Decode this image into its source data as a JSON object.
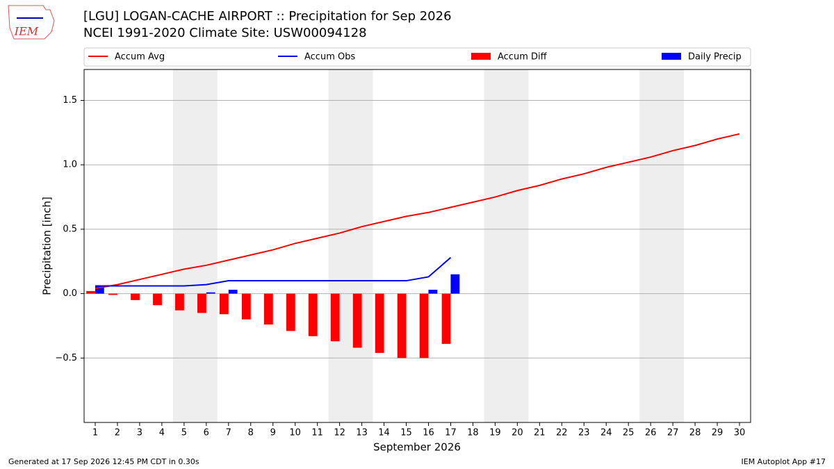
{
  "chart_data": {
    "type": "bar_line",
    "title": "[LGU] LOGAN-CACHE AIRPORT :: Precipitation for Sep 2026",
    "subtitle": "NCEI 1991-2020 Climate Site: USW00094128",
    "ylabel": "Precipitation [inch]",
    "xlabel": "September 2026",
    "footer_left": "Generated at 17 Sep 2026 12:45 PM CDT in 0.30s",
    "footer_right": "IEM Autoplot App #17",
    "logo_text": "IEM",
    "x": [
      1,
      2,
      3,
      4,
      5,
      6,
      7,
      8,
      9,
      10,
      11,
      12,
      13,
      14,
      15,
      16,
      17,
      18,
      19,
      20,
      21,
      22,
      23,
      24,
      25,
      26,
      27,
      28,
      29,
      30
    ],
    "xticks": [
      1,
      2,
      3,
      4,
      5,
      6,
      7,
      8,
      9,
      10,
      11,
      12,
      13,
      14,
      15,
      16,
      17,
      18,
      19,
      20,
      21,
      22,
      23,
      24,
      25,
      26,
      27,
      28,
      29,
      30
    ],
    "xlim": [
      0.5,
      30.5
    ],
    "ylim": [
      -1.0,
      1.74
    ],
    "yticks": [
      {
        "value": -0.5,
        "label": "−0.5"
      },
      {
        "value": 0,
        "label": "0.0"
      },
      0.5,
      {
        "value": 1,
        "label": "1.0"
      },
      1.5
    ],
    "grid": true,
    "shaded_ranges": [
      [
        4.5,
        6.5
      ],
      [
        11.5,
        13.5
      ],
      [
        18.5,
        20.5
      ],
      [
        25.5,
        27.5
      ]
    ],
    "shade_color": "#eeeeee",
    "series": [
      {
        "name": "Accum Avg",
        "kind": "line",
        "color": "#ff0000",
        "values": [
          0.04,
          0.07,
          0.11,
          0.15,
          0.19,
          0.22,
          0.26,
          0.3,
          0.34,
          0.39,
          0.43,
          0.47,
          0.52,
          0.56,
          0.6,
          0.63,
          0.67,
          0.71,
          0.75,
          0.8,
          0.84,
          0.89,
          0.93,
          0.98,
          1.02,
          1.06,
          1.11,
          1.15,
          1.2,
          1.24
        ]
      },
      {
        "name": "Accum Obs",
        "kind": "line",
        "color": "#0000ff",
        "values": [
          0.06,
          0.06,
          0.06,
          0.06,
          0.06,
          0.07,
          0.1,
          0.1,
          0.1,
          0.1,
          0.1,
          0.1,
          0.1,
          0.1,
          0.1,
          0.13,
          0.28,
          null,
          null,
          null,
          null,
          null,
          null,
          null,
          null,
          null,
          null,
          null,
          null,
          null
        ]
      },
      {
        "name": "Accum Diff",
        "kind": "bar",
        "offset": -0.4,
        "color": "#ff0000",
        "values": [
          0.02,
          -0.01,
          -0.05,
          -0.09,
          -0.13,
          -0.15,
          -0.16,
          -0.2,
          -0.24,
          -0.29,
          -0.33,
          -0.37,
          -0.42,
          -0.46,
          -0.5,
          -0.5,
          -0.39,
          null,
          null,
          null,
          null,
          null,
          null,
          null,
          null,
          null,
          null,
          null,
          null,
          null
        ]
      },
      {
        "name": "Daily Precip",
        "kind": "bar",
        "offset": 0,
        "color": "#0000ff",
        "values": [
          0.06,
          0,
          0,
          0,
          0,
          0.01,
          0.03,
          0,
          0,
          0,
          0,
          0,
          0,
          0,
          0,
          0.03,
          0.15,
          null,
          null,
          null,
          null,
          null,
          null,
          null,
          null,
          null,
          null,
          null,
          null,
          null
        ]
      }
    ]
  }
}
